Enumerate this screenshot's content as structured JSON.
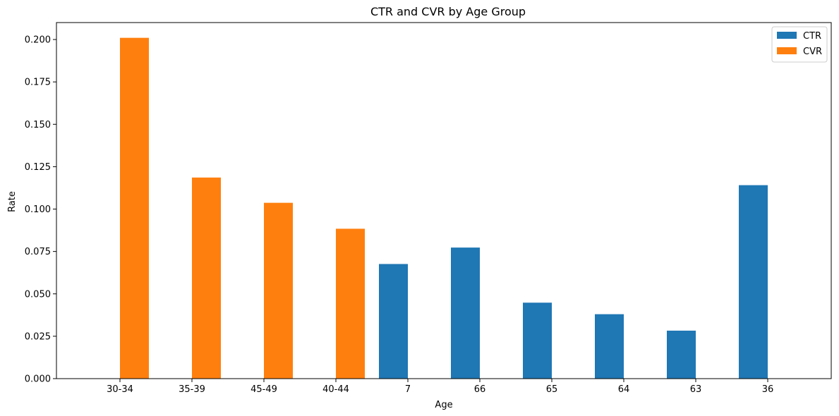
{
  "chart_data": {
    "type": "bar",
    "title": "CTR and CVR by Age Group",
    "xlabel": "Age",
    "ylabel": "Rate",
    "categories": [
      "30-34",
      "35-39",
      "45-49",
      "40-44",
      "7",
      "66",
      "65",
      "64",
      "63",
      "36"
    ],
    "series": [
      {
        "name": "CTR",
        "color": "#1f77b4",
        "values": [
          0.0002,
          0.0002,
          0.0002,
          0.0002,
          0.0676,
          0.0773,
          0.0448,
          0.038,
          0.0283,
          0.1141
        ]
      },
      {
        "name": "CVR",
        "color": "#ff7f0e",
        "values": [
          0.201,
          0.1186,
          0.1037,
          0.0884,
          0,
          0,
          0,
          0,
          0,
          0
        ]
      }
    ],
    "ylim": [
      0,
      0.21
    ],
    "yticks": [
      "0.000",
      "0.025",
      "0.050",
      "0.075",
      "0.100",
      "0.125",
      "0.150",
      "0.175",
      "0.200"
    ],
    "grid": false,
    "legend_position": "top-right"
  }
}
